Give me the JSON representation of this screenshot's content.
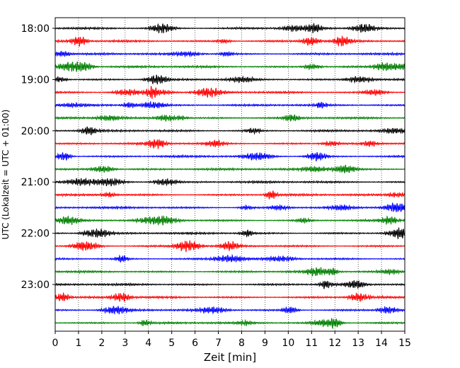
{
  "chart_data": {
    "type": "line",
    "title": "",
    "xlabel": "Zeit  [min]",
    "ylabel": "UTC (Lokalzeit = UTC + 01:00)",
    "xlim": [
      0,
      15
    ],
    "x_ticks": [
      "0",
      "1",
      "2",
      "3",
      "4",
      "5",
      "6",
      "7",
      "8",
      "9",
      "10",
      "11",
      "12",
      "13",
      "14",
      "15"
    ],
    "y_tick_labels": [
      "18:00",
      "19:00",
      "20:00",
      "21:00",
      "22:00",
      "23:00"
    ],
    "grid": "vertical dotted lines at every minute",
    "trace_colors": [
      "#000000",
      "#ff0000",
      "#0000ff",
      "#008000"
    ],
    "trace_start_times": [
      "18:00",
      "18:15",
      "18:30",
      "18:45",
      "19:00",
      "19:15",
      "19:30",
      "19:45",
      "20:00",
      "20:15",
      "20:30",
      "20:45",
      "21:00",
      "21:15",
      "21:30",
      "21:45",
      "22:00",
      "22:15",
      "22:30",
      "22:45",
      "23:00",
      "23:15",
      "23:30",
      "23:45"
    ],
    "trace_duration_min": 15
  }
}
